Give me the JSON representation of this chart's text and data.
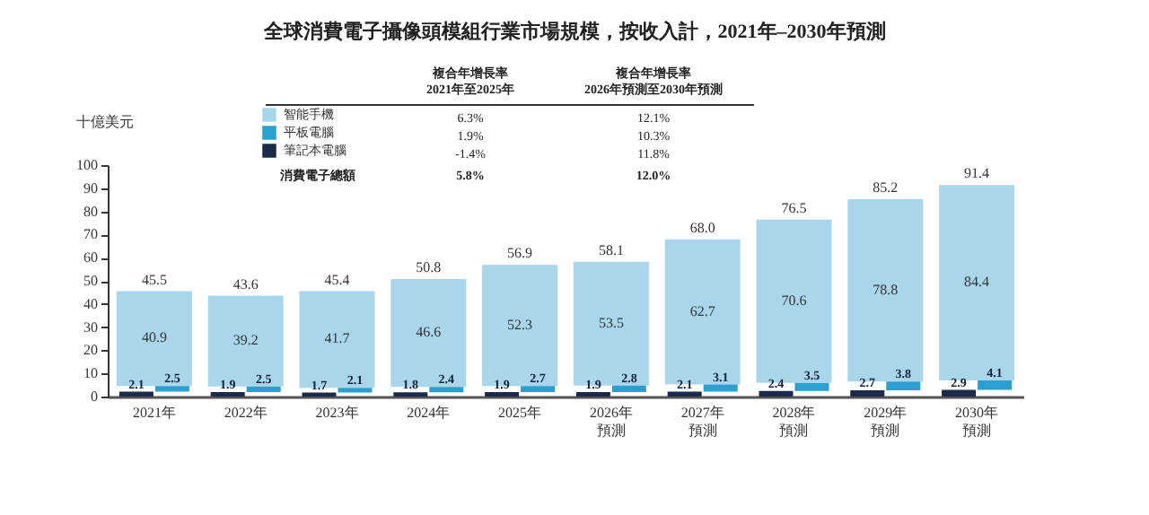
{
  "chart_data": {
    "type": "bar",
    "title": "全球消費電子攝像頭模組行業市場規模，按收入計，2021年–2030年預測",
    "ylabel": "十億美元",
    "categories": [
      "2021年",
      "2022年",
      "2023年",
      "2024年",
      "2025年",
      "2026年預測",
      "2027年預測",
      "2028年預測",
      "2029年預測",
      "2030年預測"
    ],
    "stacked": true,
    "series": [
      {
        "name": "筆記本電腦",
        "color": "#1b2a4a",
        "values": [
          2.1,
          1.9,
          1.7,
          1.8,
          1.9,
          1.9,
          2.1,
          2.4,
          2.7,
          2.9
        ]
      },
      {
        "name": "平板電腦",
        "color": "#2a9fd0",
        "values": [
          2.5,
          2.5,
          2.1,
          2.4,
          2.7,
          2.8,
          3.1,
          3.5,
          3.8,
          4.1
        ]
      },
      {
        "name": "智能手機",
        "color": "#a9d6ea",
        "values": [
          40.9,
          39.2,
          41.7,
          46.6,
          52.3,
          53.5,
          62.7,
          70.6,
          78.8,
          84.4
        ]
      }
    ],
    "totals": [
      "45.5",
      "43.6",
      "45.4",
      "50.8",
      "56.9",
      "58.1",
      "68.0",
      "76.5",
      "85.2",
      "91.4"
    ],
    "data_labels": true,
    "ylim": [
      0,
      100
    ],
    "yticks": [
      0,
      10,
      20,
      30,
      40,
      50,
      60,
      70,
      80,
      90,
      100
    ],
    "grid": false,
    "legend": "top",
    "annotations": [
      "複合年增長率\n2021年至2025年",
      "複合年增長率\n2026年預測至2030年預測",
      "6.3%",
      "12.1%",
      "1.9%",
      "10.3%",
      "-1.4%",
      "11.8%",
      "消費電子總額",
      "5.8%",
      "12.0%"
    ]
  }
}
